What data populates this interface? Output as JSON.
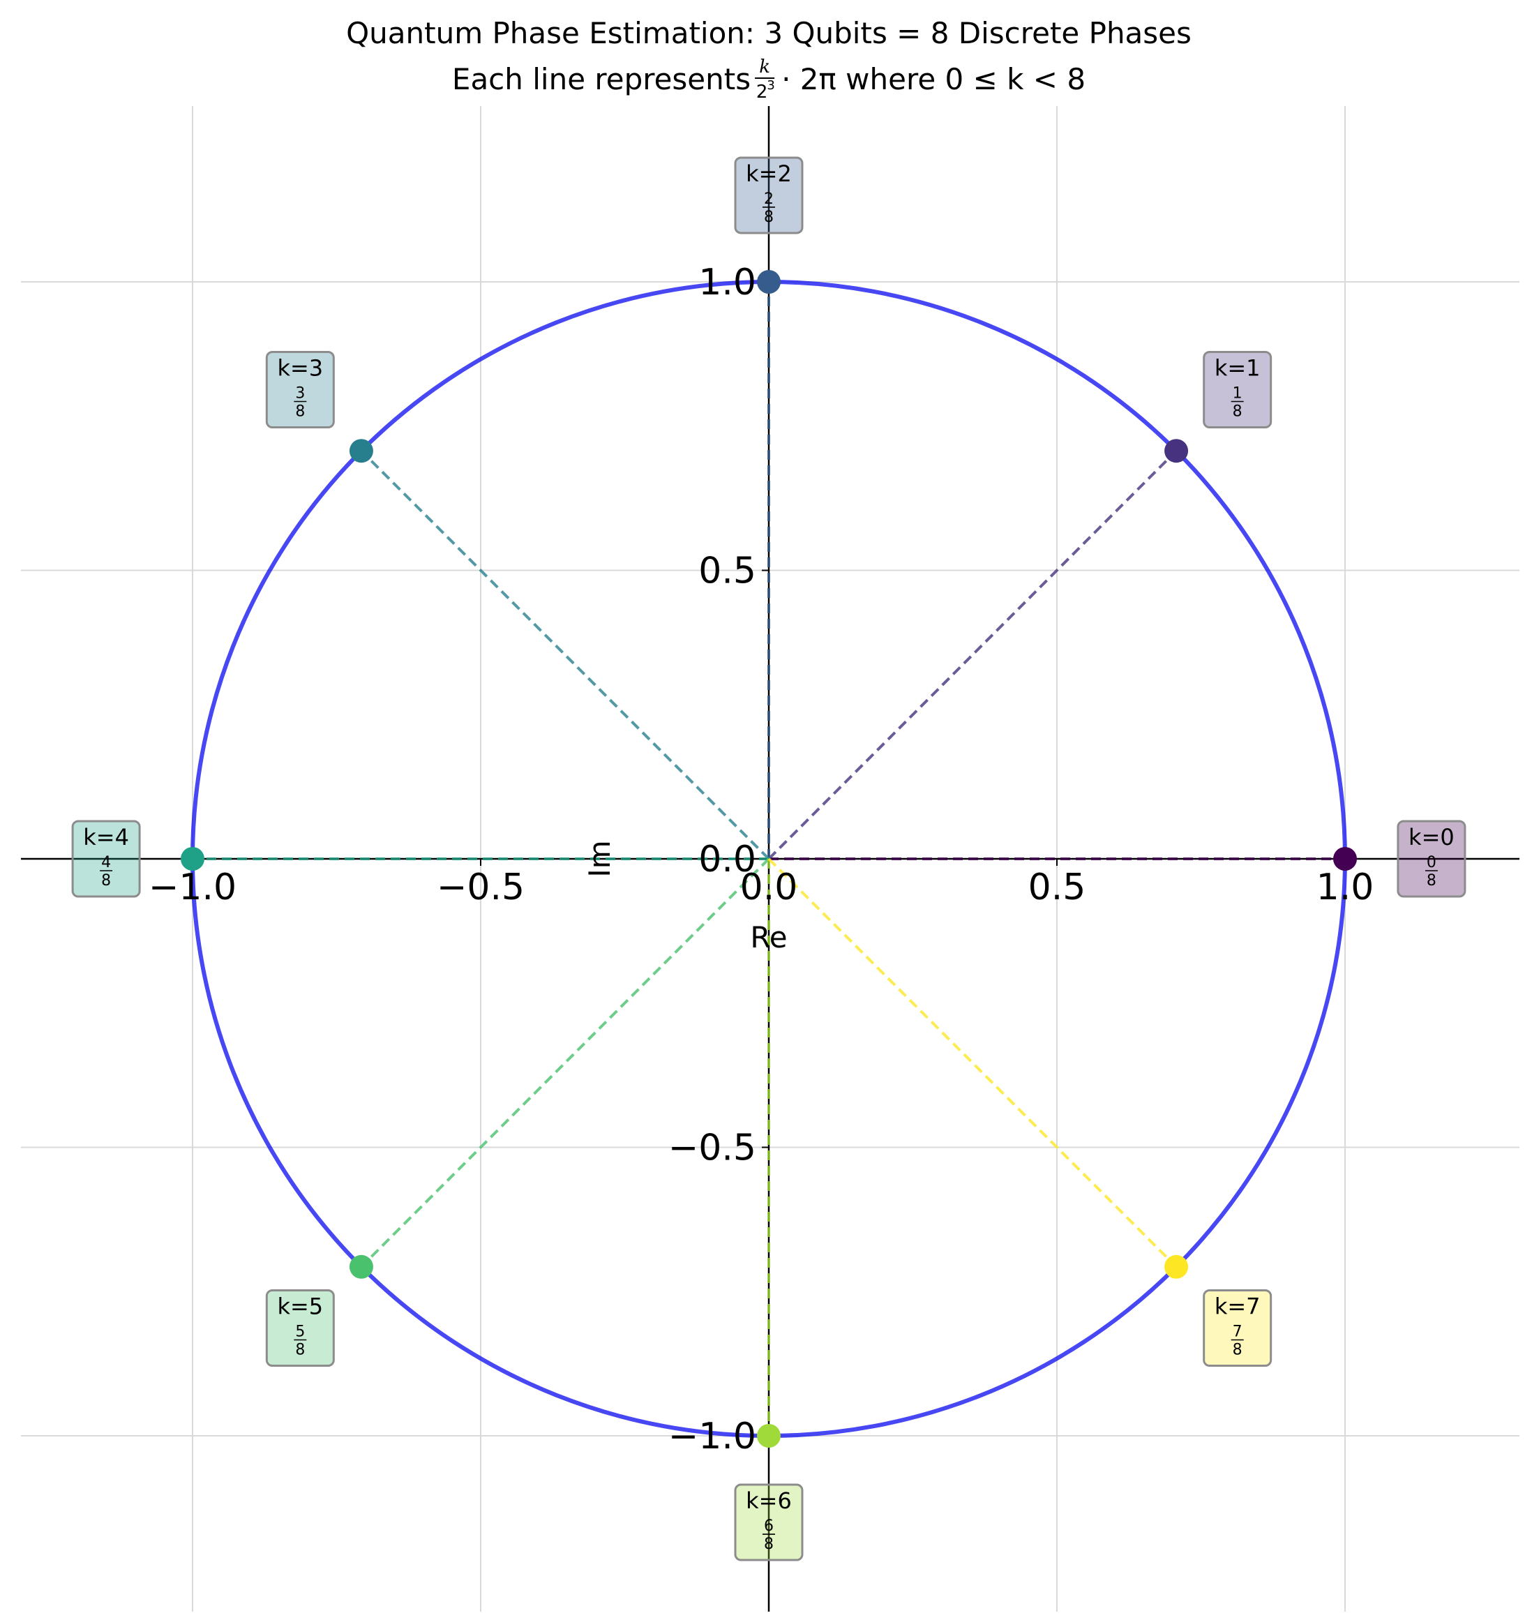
{
  "chart_data": {
    "type": "scatter",
    "title_line1": "Quantum Phase Estimation: 3 Qubits = 8 Discrete Phases",
    "title_line2": {
      "prefix": "Each line represents ",
      "frac_num": "k",
      "frac_den": "2",
      "frac_den_exp": "3",
      "mid": "· 2π where 0 ≤ k < 8"
    },
    "xlabel": "Re",
    "ylabel": "Im",
    "xlim": [
      -1.25,
      1.3
    ],
    "ylim": [
      -1.3,
      1.3
    ],
    "xticks": [
      -1.0,
      -0.5,
      0.0,
      0.5,
      1.0
    ],
    "xtick_labels": [
      "−1.0",
      "−0.5",
      "0.0",
      "0.5",
      "1.0"
    ],
    "yticks": [
      -1.0,
      -0.5,
      0.0,
      0.5,
      1.0
    ],
    "ytick_labels": [
      "−1.0",
      "−0.5",
      "0.0",
      "0.5",
      "1.0"
    ],
    "grid": true,
    "unit_circle": {
      "radius": 1.0,
      "color": "#0000ee"
    },
    "points": [
      {
        "k": 0,
        "label": "k=0",
        "num": "0",
        "den": "8",
        "x": 1.0,
        "y": 0.0,
        "color": "#440154"
      },
      {
        "k": 1,
        "label": "k=1",
        "num": "1",
        "den": "8",
        "x": 0.7071,
        "y": 0.7071,
        "color": "#46327e"
      },
      {
        "k": 2,
        "label": "k=2",
        "num": "2",
        "den": "8",
        "x": 0.0,
        "y": 1.0,
        "color": "#365c8d"
      },
      {
        "k": 3,
        "label": "k=3",
        "num": "3",
        "den": "8",
        "x": -0.7071,
        "y": 0.7071,
        "color": "#277f8e"
      },
      {
        "k": 4,
        "label": "k=4",
        "num": "4",
        "den": "8",
        "x": -1.0,
        "y": 0.0,
        "color": "#1fa187"
      },
      {
        "k": 5,
        "label": "k=5",
        "num": "5",
        "den": "8",
        "x": -0.7071,
        "y": -0.7071,
        "color": "#4ac16d"
      },
      {
        "k": 6,
        "label": "k=6",
        "num": "6",
        "den": "8",
        "x": 0.0,
        "y": -1.0,
        "color": "#9fda3a"
      },
      {
        "k": 7,
        "label": "k=7",
        "num": "7",
        "den": "8",
        "x": 0.7071,
        "y": -0.7071,
        "color": "#fde725"
      }
    ]
  }
}
